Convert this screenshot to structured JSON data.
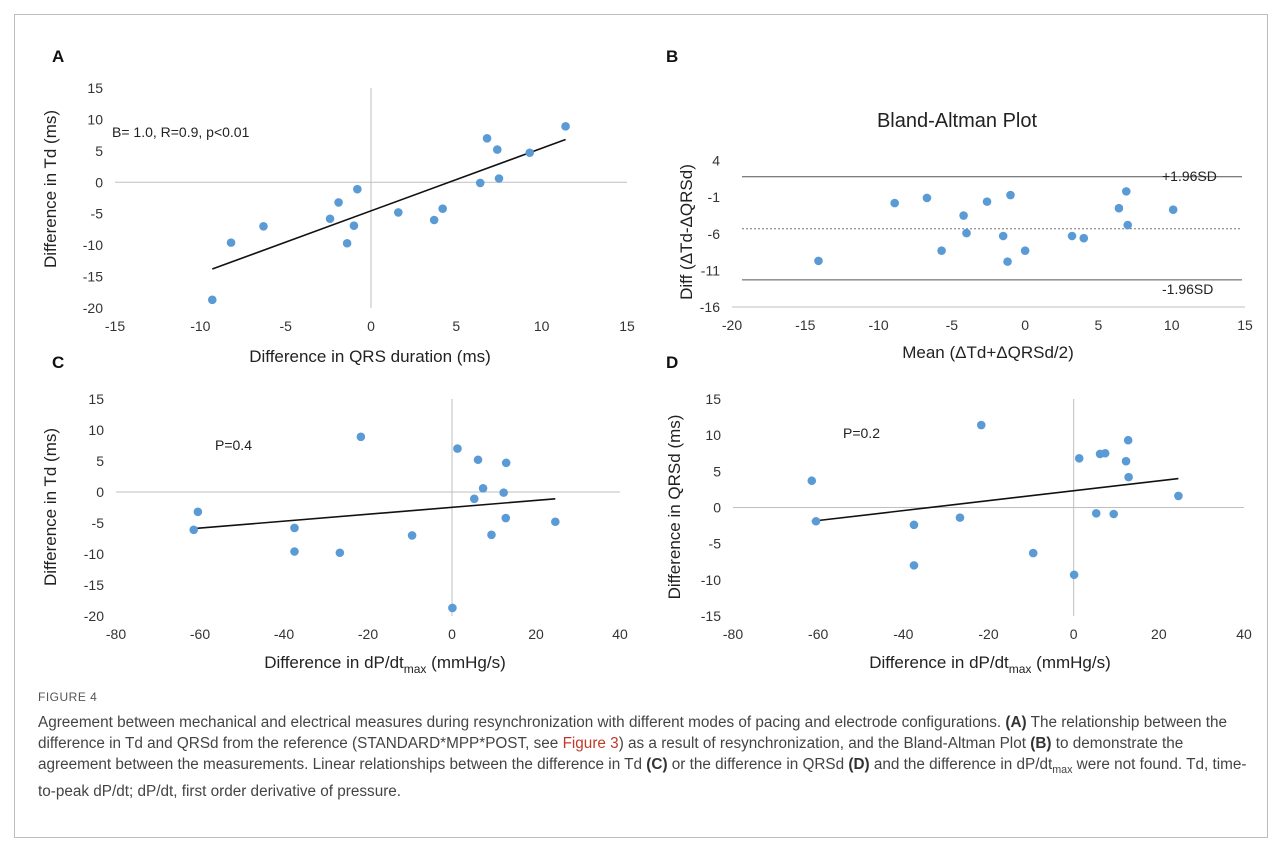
{
  "panels": {
    "A": {
      "letter": "A",
      "annotation": "B= 1.0, R=0.9, p<0.01",
      "xlabel": "Difference in QRS duration (ms)",
      "ylabel": "Difference in Td (ms)"
    },
    "B": {
      "letter": "B",
      "title": "Bland-Altman Plot",
      "xlabel": "Mean (ΔTd+ΔQRSd/2)",
      "ylabel": "Diff (ΔTd-ΔQRSd)",
      "upper_label": "+1.96SD",
      "lower_label": "-1.96SD"
    },
    "C": {
      "letter": "C",
      "annotation": "P=0.4",
      "xlabel_main": "Difference in dP/dt",
      "xlabel_sub": "max",
      "xlabel_tail": " (mmHg/s)",
      "ylabel": "Difference in Td (ms)"
    },
    "D": {
      "letter": "D",
      "annotation": "P=0.2",
      "xlabel_main": "Difference in dP/dt",
      "xlabel_sub": "max",
      "xlabel_tail": " (mmHg/s)",
      "ylabel": "Difference in QRSd (ms)"
    }
  },
  "caption": {
    "label": "FIGURE 4",
    "s1": "Agreement between mechanical and electrical measures during resynchronization with different modes of pacing and electrode configurations.",
    "pA": "(A)",
    "s2": " The relationship between the difference in Td and QRSd from the reference (STANDARD*MPP*POST, see ",
    "fig_ref": "Figure 3",
    "s3": ") as a result of resynchronization, and the Bland-Altman Plot ",
    "pB": "(B)",
    "s4": " to demonstrate the agreement between the measurements. Linear relationships between the difference in Td ",
    "pC": "(C)",
    "s5": " or the difference in QRSd ",
    "pD": "(D)",
    "s6": " and the difference in dP/dt",
    "s6_sub": "max",
    "s7": " were not found. Td, time-to-peak dP/dt; dP/dt, first order derivative of pressure."
  },
  "colors": {
    "point": "#5b9bd5",
    "line": "#111111",
    "axis": "#bfbfbf"
  },
  "chart_data": [
    {
      "type": "scatter",
      "panel": "A",
      "xlabel": "Difference in QRS duration (ms)",
      "ylabel": "Difference in Td (ms)",
      "xlim": [
        -15,
        15
      ],
      "ylim": [
        -20,
        15
      ],
      "xticks": [
        -15,
        -10,
        -5,
        0,
        5,
        10,
        15
      ],
      "yticks": [
        15,
        10,
        5,
        0,
        -5,
        -10,
        -15,
        -20
      ],
      "points": [
        [
          -9.3,
          -18.7
        ],
        [
          -8.2,
          -9.6
        ],
        [
          -6.3,
          -7.0
        ],
        [
          -2.4,
          -5.8
        ],
        [
          -1.9,
          -3.2
        ],
        [
          -1.4,
          -9.7
        ],
        [
          -1.0,
          -6.9
        ],
        [
          -0.8,
          -1.1
        ],
        [
          1.6,
          -4.8
        ],
        [
          3.7,
          -6.0
        ],
        [
          4.2,
          -4.2
        ],
        [
          6.4,
          -0.1
        ],
        [
          6.8,
          7.0
        ],
        [
          7.4,
          5.2
        ],
        [
          7.5,
          0.6
        ],
        [
          9.3,
          4.7
        ],
        [
          11.4,
          8.9
        ]
      ],
      "trendline": [
        [
          -9.3,
          -13.8
        ],
        [
          11.4,
          6.8
        ]
      ],
      "annotation": "B= 1.0, R=0.9, p<0.01"
    },
    {
      "type": "scatter",
      "panel": "B",
      "title": "Bland-Altman Plot",
      "xlabel": "Mean (ΔTd+ΔQRSd/2)",
      "ylabel": "Diff (ΔTd-ΔQRSd)",
      "xlim": [
        -20,
        15
      ],
      "ylim": [
        -16,
        6
      ],
      "xticks": [
        -20,
        -15,
        -10,
        -5,
        0,
        5,
        10,
        15
      ],
      "yticks": [
        4,
        -1,
        -6,
        -11,
        -16
      ],
      "points": [
        [
          -14.1,
          -9.7
        ],
        [
          -8.9,
          -1.8
        ],
        [
          -6.7,
          -1.1
        ],
        [
          -5.7,
          -8.3
        ],
        [
          -4.2,
          -3.5
        ],
        [
          -4.0,
          -5.9
        ],
        [
          -2.6,
          -1.6
        ],
        [
          -1.5,
          -6.3
        ],
        [
          -1.2,
          -9.8
        ],
        [
          -1.0,
          -0.7
        ],
        [
          0.0,
          -8.3
        ],
        [
          3.2,
          -6.3
        ],
        [
          4.0,
          -6.6
        ],
        [
          6.4,
          -2.5
        ],
        [
          6.9,
          -0.2
        ],
        [
          7.0,
          -4.8
        ],
        [
          10.1,
          -2.7
        ]
      ],
      "reference_lines": {
        "upper": 1.8,
        "mean": -5.3,
        "lower": -12.3
      },
      "upper_label": "+1.96SD",
      "lower_label": "-1.96SD"
    },
    {
      "type": "scatter",
      "panel": "C",
      "xlabel": "Difference in dP/dtmax (mmHg/s)",
      "ylabel": "Difference in Td (ms)",
      "xlim": [
        -80,
        40
      ],
      "ylim": [
        -20,
        15
      ],
      "xticks": [
        -80,
        -60,
        -40,
        -20,
        0,
        20,
        40
      ],
      "yticks": [
        15,
        10,
        5,
        0,
        -5,
        -10,
        -15,
        -20
      ],
      "points": [
        [
          -61.5,
          -6.1
        ],
        [
          -60.5,
          -3.2
        ],
        [
          -37.5,
          -5.8
        ],
        [
          -37.5,
          -9.6
        ],
        [
          -26.7,
          -9.8
        ],
        [
          -21.7,
          8.9
        ],
        [
          -9.5,
          -7.0
        ],
        [
          0.1,
          -18.7
        ],
        [
          1.3,
          7.0
        ],
        [
          5.3,
          -1.1
        ],
        [
          6.2,
          5.2
        ],
        [
          7.4,
          0.6
        ],
        [
          9.4,
          -6.9
        ],
        [
          12.3,
          -0.1
        ],
        [
          12.8,
          -4.2
        ],
        [
          12.9,
          4.7
        ],
        [
          24.6,
          -4.8
        ]
      ],
      "trendline": [
        [
          -61.5,
          -5.9
        ],
        [
          24.6,
          -1.1
        ]
      ],
      "annotation": "P=0.4"
    },
    {
      "type": "scatter",
      "panel": "D",
      "xlabel": "Difference in dP/dtmax (mmHg/s)",
      "ylabel": "Difference in QRSd (ms)",
      "xlim": [
        -80,
        40
      ],
      "ylim": [
        -15,
        15
      ],
      "xticks": [
        -80,
        -60,
        -40,
        -20,
        0,
        20,
        40
      ],
      "yticks": [
        15,
        10,
        5,
        0,
        -5,
        -10,
        -15
      ],
      "points": [
        [
          -61.5,
          3.7
        ],
        [
          -60.5,
          -1.9
        ],
        [
          -37.5,
          -2.4
        ],
        [
          -37.5,
          -8.0
        ],
        [
          -26.7,
          -1.4
        ],
        [
          -21.7,
          11.4
        ],
        [
          -9.5,
          -6.3
        ],
        [
          0.1,
          -9.3
        ],
        [
          1.3,
          6.8
        ],
        [
          5.3,
          -0.8
        ],
        [
          6.2,
          7.4
        ],
        [
          7.4,
          7.5
        ],
        [
          9.4,
          -0.9
        ],
        [
          12.3,
          6.4
        ],
        [
          12.8,
          9.3
        ],
        [
          12.9,
          4.2
        ],
        [
          24.6,
          1.6
        ]
      ],
      "trendline": [
        [
          -61.5,
          -1.9
        ],
        [
          24.6,
          4.0
        ]
      ],
      "annotation": "P=0.2"
    }
  ]
}
